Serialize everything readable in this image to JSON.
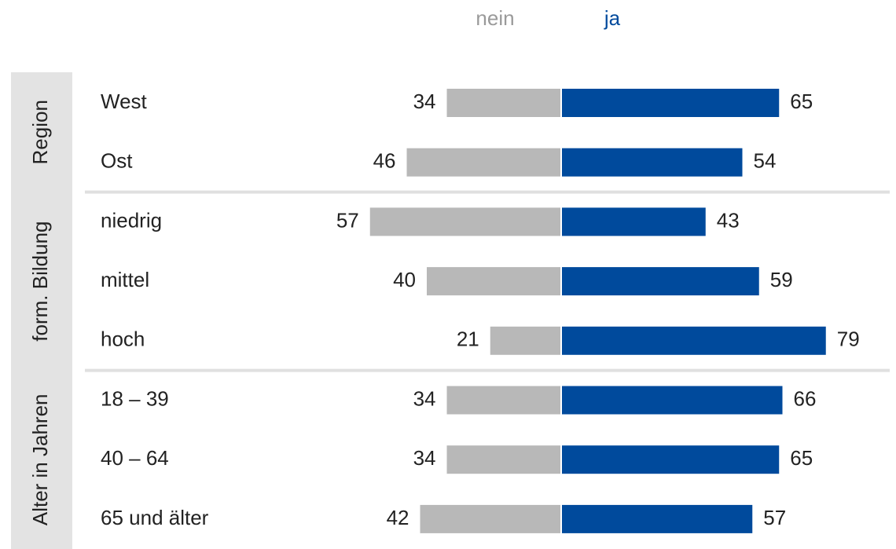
{
  "chart_data": {
    "type": "diverging_bar",
    "groups": [
      {
        "name": "Region",
        "categories": [
          "West",
          "Ost"
        ]
      },
      {
        "name": "form. Bildung",
        "categories": [
          "niedrig",
          "mittel",
          "hoch"
        ]
      },
      {
        "name": "Alter in Jahren",
        "categories": [
          "18 – 39",
          "40 – 64",
          "65 und älter"
        ]
      }
    ],
    "series": [
      {
        "name": "nein",
        "color": "#b8b8b8",
        "values": [
          34,
          46,
          57,
          40,
          21,
          34,
          34,
          42
        ]
      },
      {
        "name": "ja",
        "color": "#004a9c",
        "values": [
          65,
          54,
          43,
          59,
          79,
          66,
          65,
          57
        ]
      }
    ]
  }
}
